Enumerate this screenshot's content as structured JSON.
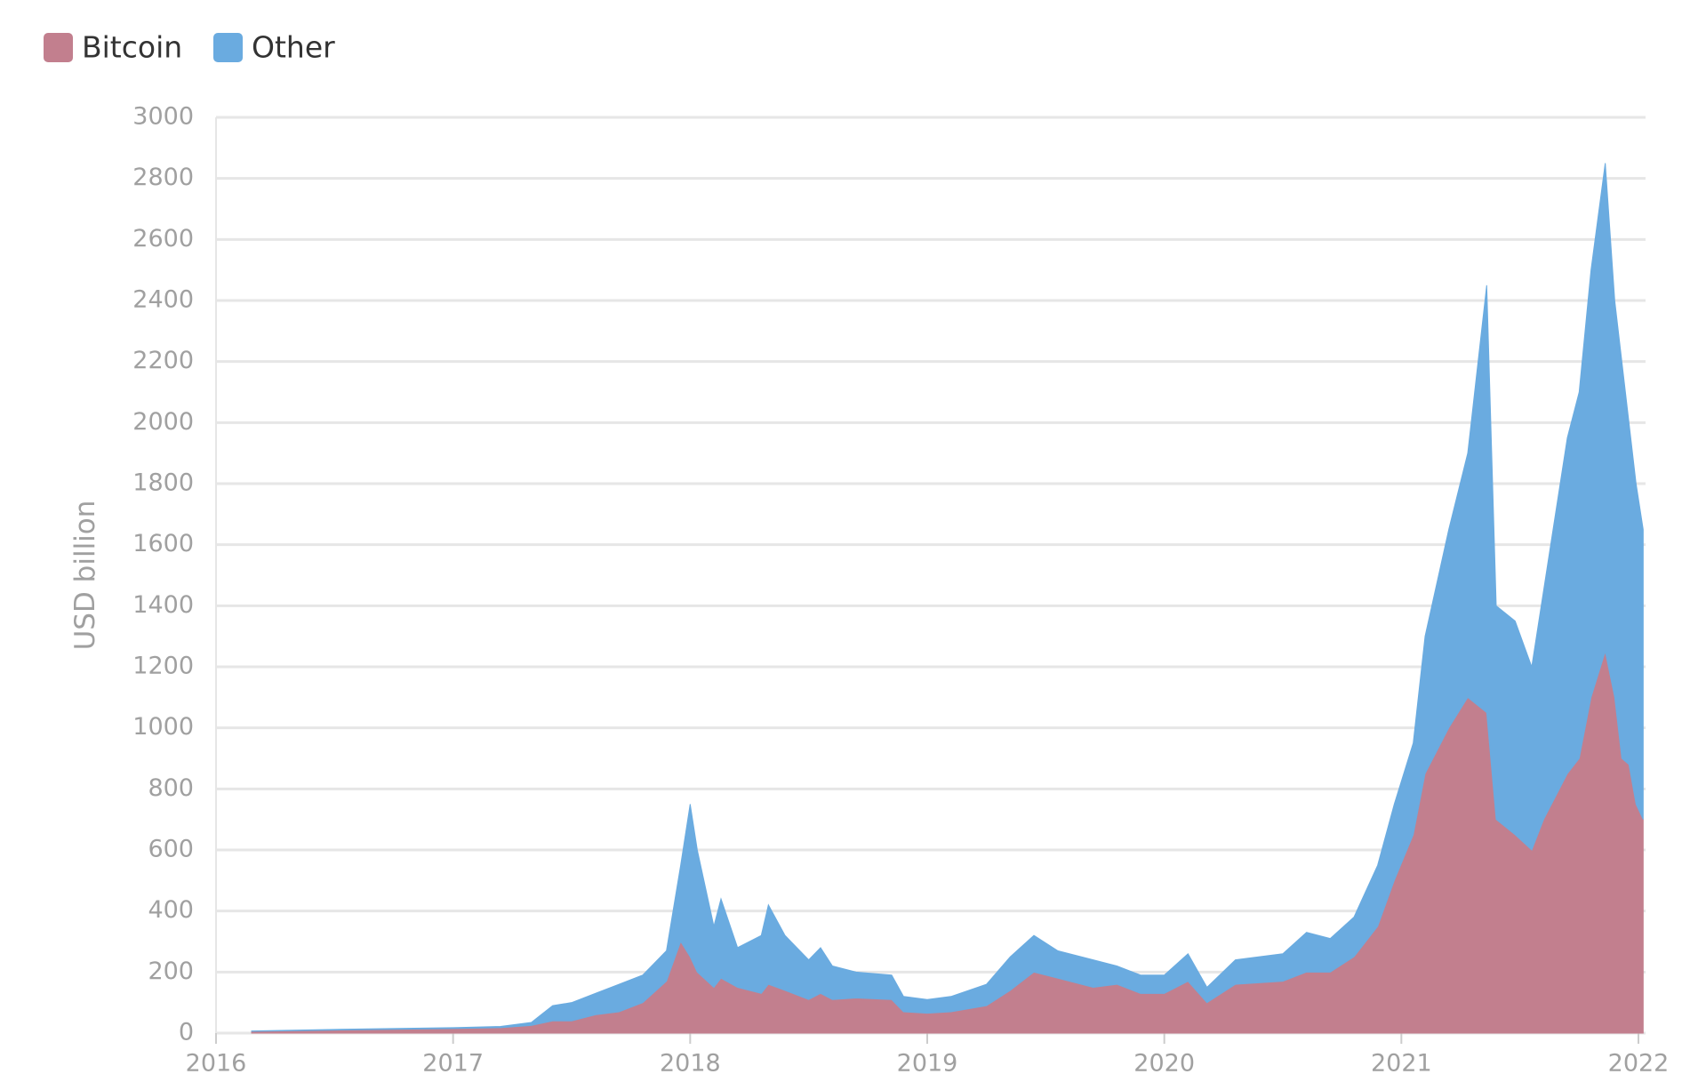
{
  "chart_data": {
    "type": "stacked-area",
    "y_label": "USD billion",
    "x": [
      2016.15,
      2016.5,
      2017.0,
      2017.2,
      2017.33,
      2017.42,
      2017.5,
      2017.6,
      2017.7,
      2017.8,
      2017.9,
      2017.96,
      2018.0,
      2018.03,
      2018.1,
      2018.13,
      2018.2,
      2018.3,
      2018.33,
      2018.4,
      2018.5,
      2018.55,
      2018.6,
      2018.7,
      2018.85,
      2018.9,
      2019.0,
      2019.1,
      2019.25,
      2019.35,
      2019.45,
      2019.55,
      2019.7,
      2019.8,
      2019.9,
      2020.0,
      2020.1,
      2020.18,
      2020.3,
      2020.5,
      2020.6,
      2020.7,
      2020.8,
      2020.9,
      2020.97,
      2021.05,
      2021.1,
      2021.2,
      2021.28,
      2021.36,
      2021.4,
      2021.48,
      2021.55,
      2021.6,
      2021.7,
      2021.75,
      2021.8,
      2021.86,
      2021.9,
      2021.93,
      2021.96,
      2021.99,
      2022.02
    ],
    "series": [
      {
        "name": "Bitcoin",
        "color": "#c27f8e",
        "values": [
          6,
          10,
          15,
          18,
          25,
          40,
          40,
          60,
          70,
          100,
          170,
          300,
          250,
          200,
          150,
          180,
          150,
          130,
          160,
          140,
          110,
          130,
          110,
          115,
          110,
          70,
          65,
          70,
          90,
          140,
          200,
          180,
          150,
          160,
          130,
          130,
          170,
          100,
          160,
          170,
          200,
          200,
          250,
          350,
          500,
          650,
          850,
          1000,
          1100,
          1050,
          700,
          650,
          600,
          700,
          850,
          900,
          1100,
          1250,
          1100,
          900,
          880,
          750,
          700
        ]
      },
      {
        "name": "Other",
        "color": "#6aabe0",
        "values": [
          1,
          2,
          3,
          4,
          10,
          50,
          60,
          70,
          90,
          90,
          100,
          250,
          500,
          400,
          200,
          260,
          130,
          190,
          260,
          180,
          130,
          150,
          110,
          85,
          80,
          50,
          45,
          50,
          70,
          110,
          120,
          90,
          90,
          60,
          60,
          60,
          90,
          50,
          80,
          90,
          130,
          110,
          130,
          200,
          250,
          300,
          450,
          650,
          800,
          1400,
          700,
          700,
          600,
          750,
          1100,
          1200,
          1400,
          1600,
          1300,
          1300,
          1120,
          1050,
          950
        ]
      }
    ],
    "xlim": [
      2016,
      2022.03
    ],
    "xticks": [
      2016,
      2017,
      2018,
      2019,
      2020,
      2021,
      2022
    ],
    "ylim": [
      0,
      3000
    ],
    "yticks": [
      0,
      200,
      400,
      600,
      800,
      1000,
      1200,
      1400,
      1600,
      1800,
      2000,
      2200,
      2400,
      2600,
      2800,
      3000
    ],
    "grid": true
  }
}
